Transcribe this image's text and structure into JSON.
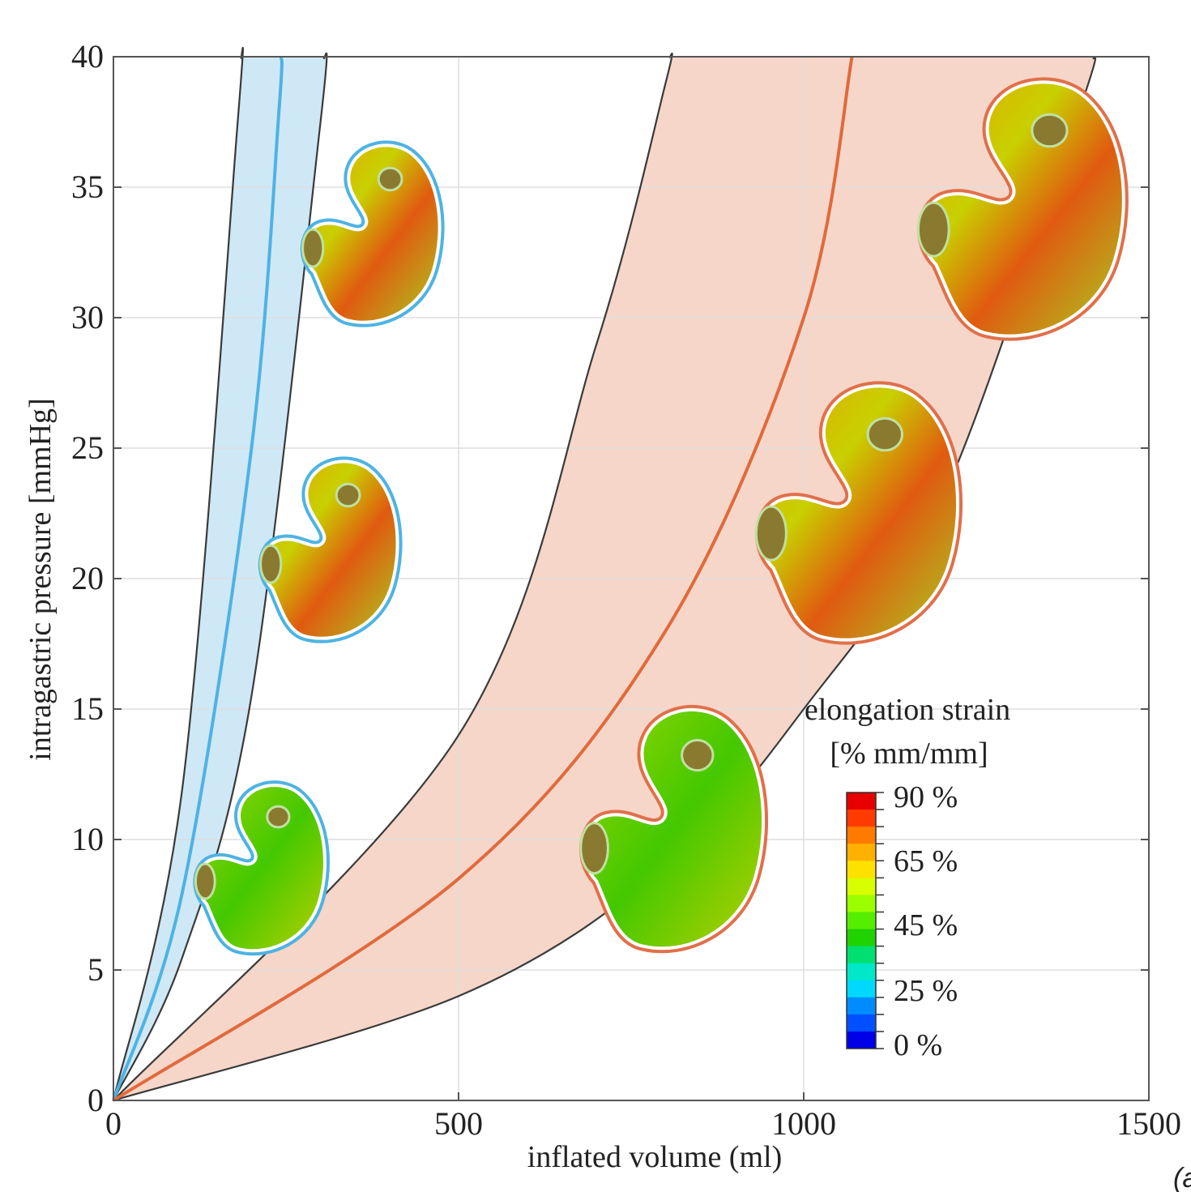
{
  "header": {
    "text": "",
    "color": "#cc1111"
  },
  "corner_label": "(a",
  "chart_data": {
    "type": "line",
    "title": "",
    "xlabel": "inflated volume (ml)",
    "ylabel": "intragastric pressure [mmHg]",
    "xlim": [
      0,
      1500
    ],
    "ylim": [
      0,
      40
    ],
    "x_ticks": [
      0,
      500,
      1000,
      1500
    ],
    "y_ticks": [
      0,
      5,
      10,
      15,
      20,
      25,
      30,
      35,
      40
    ],
    "grid": true,
    "bands": [
      {
        "color": "#cfe8f6",
        "lower": {
          "x": [
            0,
            100,
            200,
            300,
            305
          ],
          "y": [
            0,
            5.5,
            15.5,
            37.5,
            40
          ]
        },
        "upper": {
          "x": [
            0,
            100,
            180,
            185
          ],
          "y": [
            0,
            12,
            37.5,
            40
          ]
        }
      },
      {
        "color": "#f6d6c8",
        "lower": {
          "x": [
            0,
            500,
            800,
            1000,
            1200,
            1400,
            1420
          ],
          "y": [
            0,
            4,
            9,
            15,
            23,
            38,
            40
          ]
        },
        "upper": {
          "x": [
            0,
            500,
            700,
            800,
            806
          ],
          "y": [
            0,
            14,
            29,
            39,
            40
          ]
        }
      }
    ],
    "series": [
      {
        "color": "#4eb3e3",
        "x": [
          0,
          100,
          200,
          240,
          243
        ],
        "y": [
          0,
          8,
          25,
          38,
          40
        ]
      },
      {
        "color": "#e06a3c",
        "x": [
          0,
          500,
          800,
          1000,
          1070
        ],
        "y": [
          0,
          8.5,
          18,
          30,
          40
        ]
      }
    ],
    "legend": {
      "title_line1": "elongation strain",
      "title_line2": "[% mm/mm]",
      "placement": "bottom-right",
      "labels": [
        "90 %",
        "65 %",
        "45 %",
        "25 %",
        "0 %"
      ],
      "colors": [
        "#e60000",
        "#ff3b00",
        "#ff7a00",
        "#ffb000",
        "#ffe100",
        "#d8ff00",
        "#9cff00",
        "#55ee00",
        "#1fd200",
        "#00e070",
        "#00e8c8",
        "#00d8ff",
        "#008cff",
        "#0050ff",
        "#0000e6"
      ]
    }
  }
}
